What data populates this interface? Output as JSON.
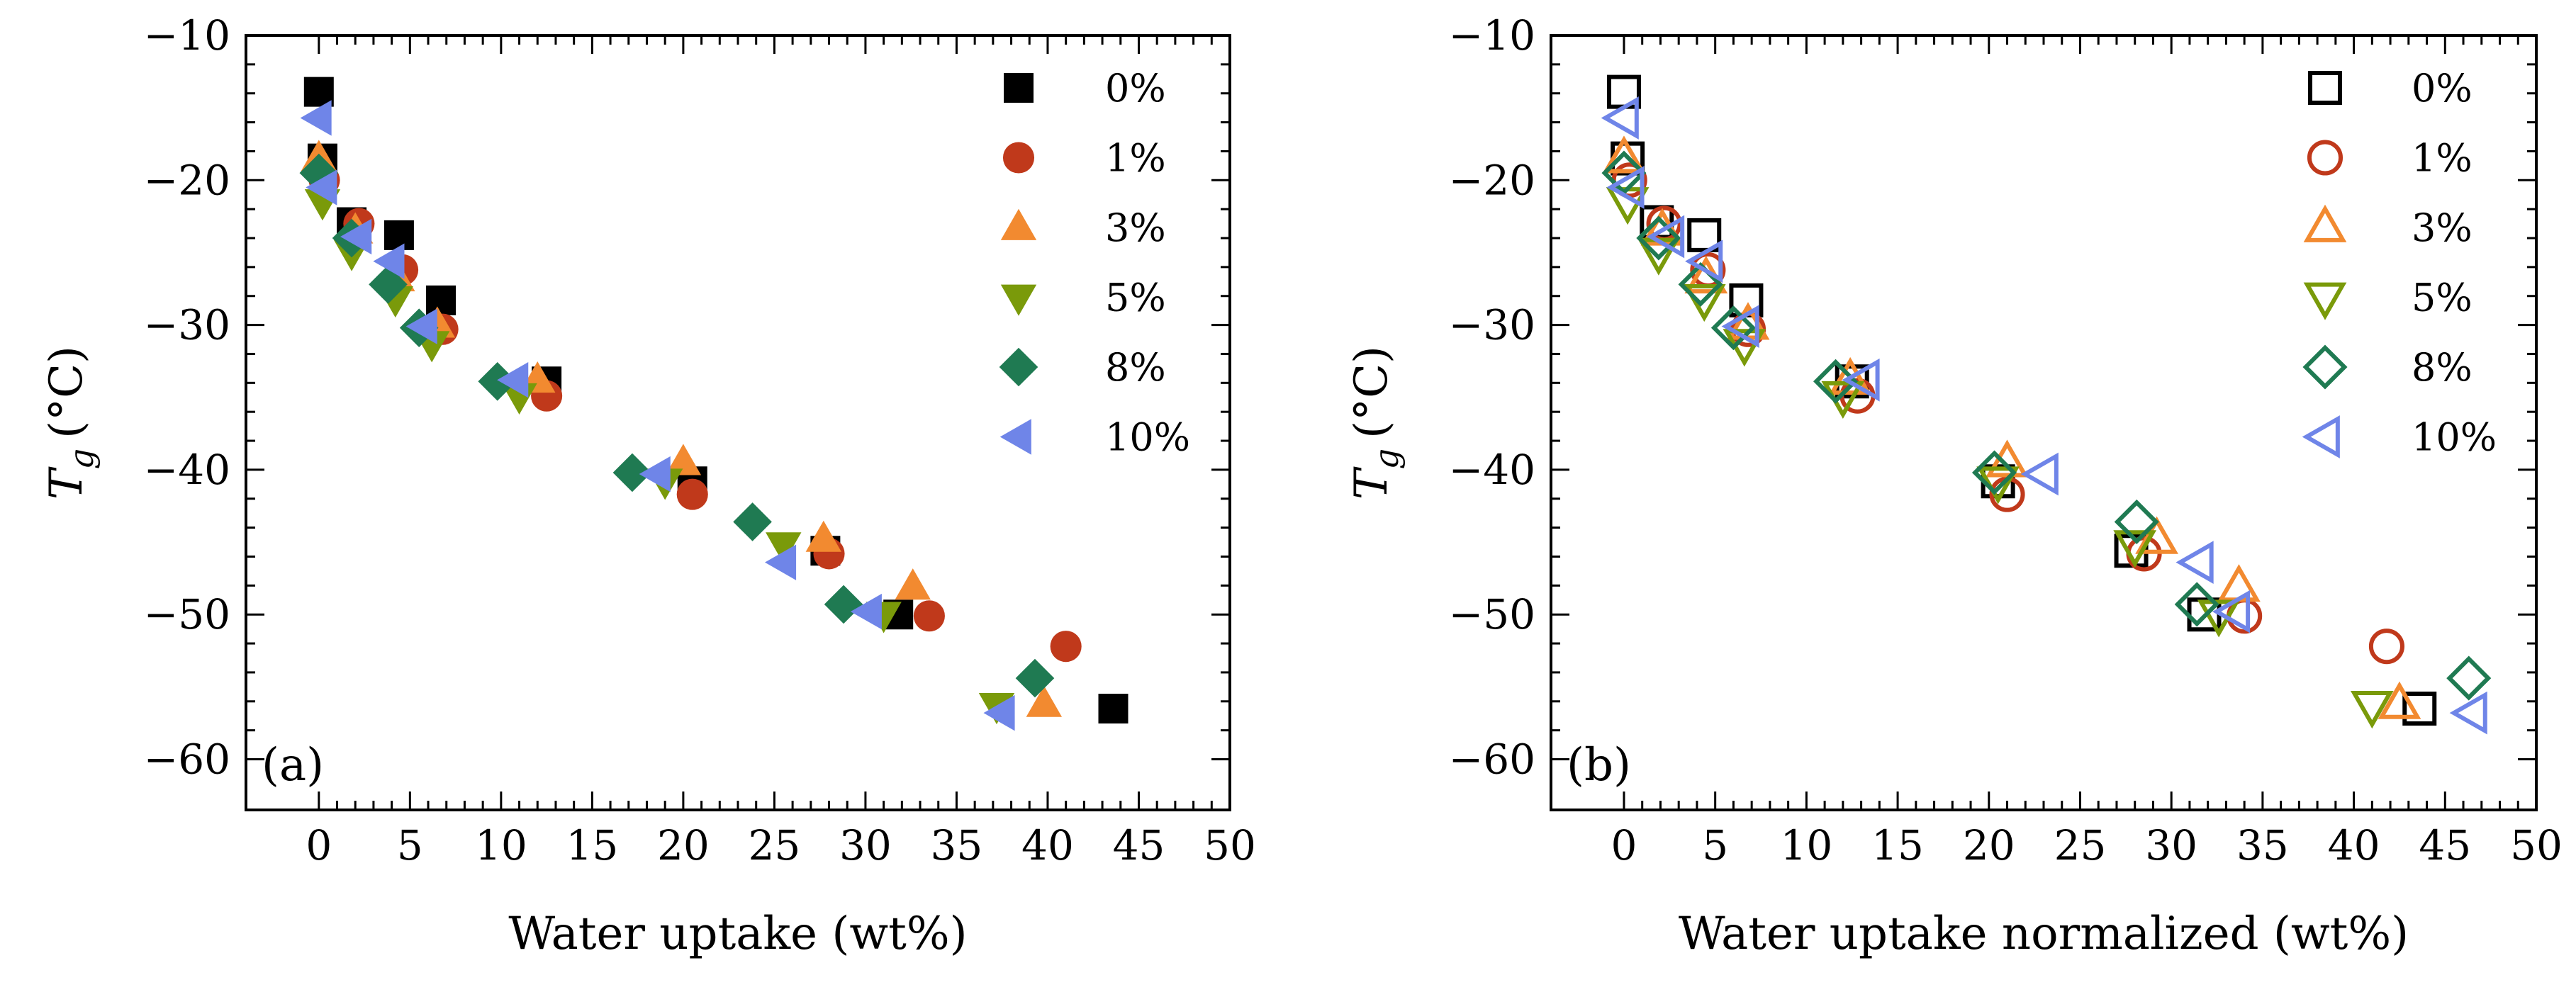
{
  "chart_data": [
    {
      "type": "scatter",
      "panel_label": "(a)",
      "xlabel": "Water uptake (wt%)",
      "ylabel_main": "T",
      "ylabel_sub": "g",
      "ylabel_unit": "(°C)",
      "xlim": [
        -4,
        50
      ],
      "ylim": [
        -63.5,
        -10
      ],
      "xticks": [
        0,
        5,
        10,
        15,
        20,
        25,
        30,
        35,
        40,
        45,
        50
      ],
      "yticks": [
        -60,
        -50,
        -40,
        -30,
        -20,
        -10
      ],
      "marker_fill": "filled",
      "legend_position": "top-right",
      "series": [
        {
          "name": "0%",
          "marker": "square",
          "color": "#000000",
          "x": [
            0,
            0.2,
            1.8,
            4.4,
            6.7,
            12.5,
            20.5,
            27.8,
            31.8,
            43.6
          ],
          "y": [
            -13.9,
            -18.5,
            -22.9,
            -23.8,
            -28.3,
            -33.9,
            -40.8,
            -45.6,
            -50.0,
            -56.5
          ]
        },
        {
          "name": "1%",
          "marker": "circle",
          "color": "#c0391b",
          "x": [
            0.3,
            2.2,
            4.6,
            6.8,
            12.5,
            20.5,
            28.0,
            33.5,
            41.0
          ],
          "y": [
            -20.0,
            -23.0,
            -26.2,
            -30.3,
            -34.9,
            -41.7,
            -45.8,
            -50.1,
            -52.2
          ]
        },
        {
          "name": "3%",
          "marker": "triangle-up",
          "color": "#f28a30",
          "x": [
            0,
            2.0,
            4.3,
            6.5,
            12.0,
            20.0,
            27.7,
            32.6,
            39.8
          ],
          "y": [
            -18.5,
            -23.5,
            -26.8,
            -30.0,
            -33.8,
            -39.5,
            -44.8,
            -48.1,
            -56.2
          ]
        },
        {
          "name": "5%",
          "marker": "triangle-down",
          "color": "#7a9a0a",
          "x": [
            0.2,
            1.8,
            4.2,
            6.2,
            11.0,
            19.0,
            25.5,
            31.0,
            37.2
          ],
          "y": [
            -21.5,
            -25.0,
            -28.2,
            -31.3,
            -34.9,
            -40.8,
            -45.2,
            -50.0,
            -56.3
          ]
        },
        {
          "name": "8%",
          "marker": "diamond",
          "color": "#1f7a52",
          "x": [
            0,
            1.8,
            3.8,
            5.5,
            9.8,
            17.2,
            23.8,
            28.8,
            39.3
          ],
          "y": [
            -19.5,
            -24.0,
            -27.2,
            -30.2,
            -33.9,
            -40.2,
            -43.6,
            -49.3,
            -54.4
          ]
        },
        {
          "name": "10%",
          "marker": "triangle-left",
          "color": "#6f85e8",
          "x": [
            0,
            0.3,
            2.2,
            4.0,
            5.8,
            10.8,
            18.6,
            25.5,
            30.2,
            37.5
          ],
          "y": [
            -15.7,
            -20.5,
            -23.9,
            -25.6,
            -30.1,
            -33.8,
            -40.3,
            -46.4,
            -49.8,
            -56.8
          ]
        }
      ]
    },
    {
      "type": "scatter",
      "panel_label": "(b)",
      "xlabel": "Water uptake normalized (wt%)",
      "ylabel_main": "T",
      "ylabel_sub": "g",
      "ylabel_unit": "(°C)",
      "xlim": [
        -4,
        50
      ],
      "ylim": [
        -63.5,
        -10
      ],
      "xticks": [
        0,
        5,
        10,
        15,
        20,
        25,
        30,
        35,
        40,
        45,
        50
      ],
      "yticks": [
        -60,
        -50,
        -40,
        -30,
        -20,
        -10
      ],
      "marker_fill": "open",
      "legend_position": "top-right",
      "series": [
        {
          "name": "0%",
          "marker": "square",
          "color": "#000000",
          "x": [
            0,
            0.2,
            1.8,
            4.4,
            6.7,
            12.5,
            20.5,
            27.8,
            31.8,
            43.6
          ],
          "y": [
            -13.9,
            -18.5,
            -22.9,
            -23.8,
            -28.3,
            -33.9,
            -40.8,
            -45.6,
            -50.0,
            -56.5
          ]
        },
        {
          "name": "1%",
          "marker": "circle",
          "color": "#c0391b",
          "x": [
            0.3,
            2.2,
            4.6,
            6.8,
            12.8,
            21.0,
            28.5,
            34.0,
            41.8
          ],
          "y": [
            -20.0,
            -23.0,
            -26.2,
            -30.3,
            -34.9,
            -41.7,
            -45.8,
            -50.1,
            -52.2
          ]
        },
        {
          "name": "3%",
          "marker": "triangle-up",
          "color": "#f28a30",
          "x": [
            0,
            2.1,
            4.5,
            6.8,
            12.4,
            21.0,
            29.2,
            33.7,
            42.5
          ],
          "y": [
            -18.5,
            -23.5,
            -26.8,
            -30.0,
            -33.8,
            -39.5,
            -44.8,
            -48.1,
            -56.2
          ]
        },
        {
          "name": "5%",
          "marker": "triangle-down",
          "color": "#7a9a0a",
          "x": [
            0.2,
            1.9,
            4.4,
            6.6,
            12.0,
            20.5,
            28.0,
            32.6,
            41.0
          ],
          "y": [
            -21.5,
            -25.0,
            -28.2,
            -31.3,
            -34.9,
            -40.8,
            -45.2,
            -50.0,
            -56.3
          ]
        },
        {
          "name": "8%",
          "marker": "diamond",
          "color": "#1f7a52",
          "x": [
            0,
            1.9,
            4.2,
            6.0,
            11.6,
            20.3,
            28.1,
            31.4,
            46.3
          ],
          "y": [
            -19.5,
            -24.0,
            -27.2,
            -30.2,
            -33.9,
            -40.2,
            -43.6,
            -49.3,
            -54.4
          ]
        },
        {
          "name": "10%",
          "marker": "triangle-left",
          "color": "#6f85e8",
          "x": [
            0,
            0.3,
            2.5,
            4.6,
            6.6,
            13.2,
            23.0,
            31.5,
            33.5,
            46.5
          ],
          "y": [
            -15.7,
            -20.5,
            -23.9,
            -25.6,
            -30.1,
            -33.8,
            -40.3,
            -46.4,
            -49.8,
            -56.8
          ]
        }
      ]
    }
  ]
}
